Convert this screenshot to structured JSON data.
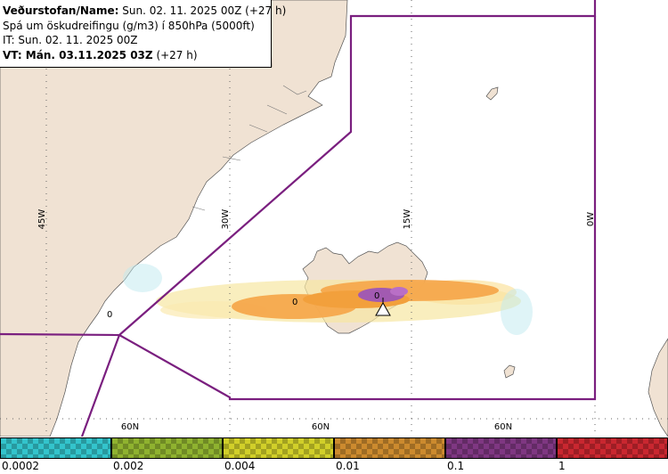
{
  "info": {
    "line1_bold": "Veðurstofan/Name:",
    "line1_rest": "Sun. 02. 11. 2025 00Z (+27 h)",
    "line2": "Spá um öskudreifingu (g/m3) í 850hPa (5000ft)",
    "line3": "IT: Sun. 02. 11. 2025 00Z",
    "line4_bold": "VT: Mán. 03.11.2025 03Z",
    "line4_rest": "(+27 h)"
  },
  "grid": {
    "longitudes": [
      "45W",
      "30W",
      "15W",
      "0W"
    ],
    "latitudes": [
      "60N",
      "60N",
      "60N"
    ]
  },
  "map": {
    "eruption_marker": "volcano-triangle",
    "cell_label": "0"
  },
  "legend": {
    "colors": [
      "#33c4cc",
      "#8fb22f",
      "#d1cf29",
      "#cc8a2e",
      "#7f3782",
      "#c92730"
    ],
    "labels": [
      "0.0002",
      "0.002",
      "0.004",
      "0.01",
      "0.1",
      "1"
    ]
  },
  "colors": {
    "land": "#f0e2d3",
    "sea": "#ffffff",
    "boundary": "#7a1f7f",
    "ash_low": "#f6e7a2",
    "ash_mid": "#f5a84c",
    "ash_high": "#a25ab1"
  }
}
